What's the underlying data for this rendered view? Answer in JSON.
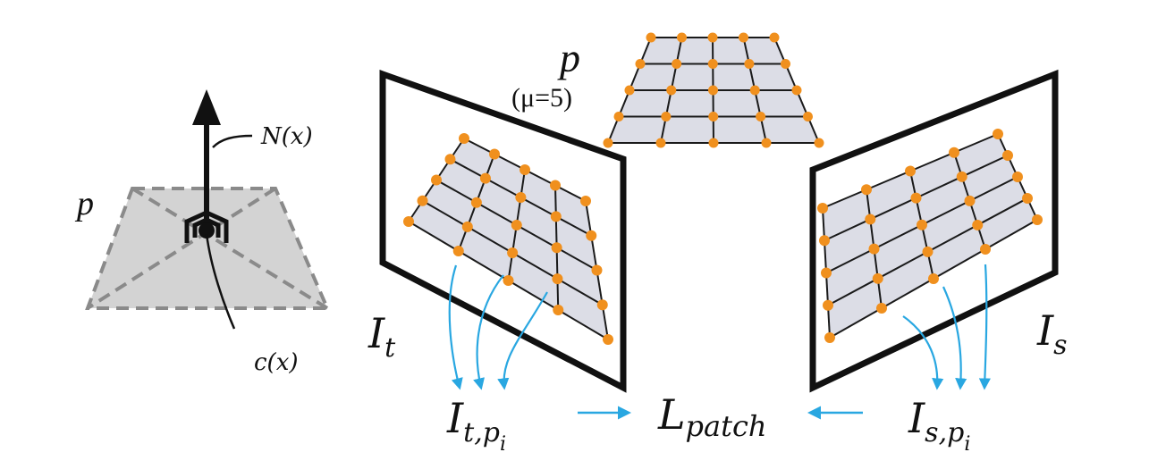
{
  "colors": {
    "grid_fill": "#dcdde6",
    "grid_line": "#1a1a1a",
    "point": "#f0901e",
    "arrow_blue": "#29a7e1",
    "plane_fill": "#d3d3d3",
    "plane_dash": "#8a8a8a",
    "frame": "#111111"
  },
  "labels": {
    "plane_p": "p",
    "normal": "N(x)",
    "center": "c(x)",
    "patch_p": "p",
    "mu": "(μ=5)",
    "target_image": "I",
    "target_image_sub": "t",
    "source_image": "I",
    "source_image_sub": "s",
    "target_sample": "I",
    "target_sample_sub": "t,p",
    "target_sample_subsub": "i",
    "source_sample": "I",
    "source_sample_sub": "s,p",
    "source_sample_subsub": "i",
    "loss": "L",
    "loss_sub": "patch"
  }
}
